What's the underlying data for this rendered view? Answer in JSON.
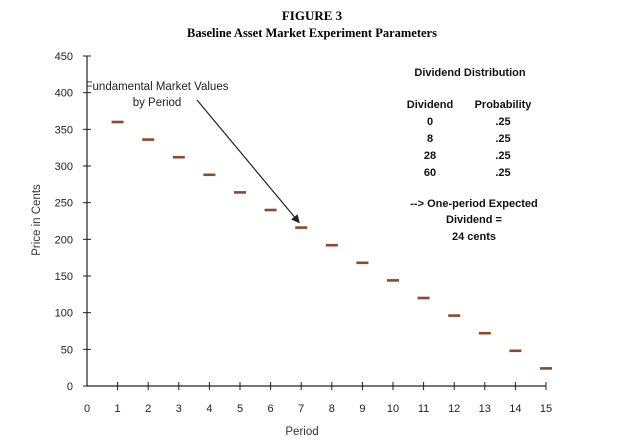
{
  "figure_number": "FIGURE 3",
  "figure_title": "Baseline Asset Market Experiment Parameters",
  "annotation": {
    "line1": "Fundamental Market Values",
    "line2": "by Period",
    "arrow_target_x": 7,
    "arrow_target_y": 216
  },
  "dividend_table": {
    "title": "Dividend Distribution",
    "col1_header": "Dividend",
    "col2_header": "Probability",
    "rows": [
      {
        "dividend": "0",
        "probability": ".25"
      },
      {
        "dividend": "8",
        "probability": ".25"
      },
      {
        "dividend": "28",
        "probability": ".25"
      },
      {
        "dividend": "60",
        "probability": ".25"
      }
    ],
    "expected_line1": "--> One-period Expected",
    "expected_line2": "Dividend =",
    "expected_line3": "24 cents"
  },
  "colors": {
    "marker": "#8b4a2b",
    "axis": "#222222"
  },
  "chart_data": {
    "type": "scatter",
    "title": "Baseline Asset Market Experiment Parameters",
    "xlabel": "Period",
    "ylabel": "Price in Cents",
    "xlim": [
      0,
      15
    ],
    "ylim": [
      0,
      450
    ],
    "x_ticks": [
      0,
      1,
      2,
      3,
      4,
      5,
      6,
      7,
      8,
      9,
      10,
      11,
      12,
      13,
      14,
      15
    ],
    "y_ticks": [
      0,
      50,
      100,
      150,
      200,
      250,
      300,
      350,
      400,
      450
    ],
    "grid": false,
    "series": [
      {
        "x": [
          1,
          2,
          3,
          4,
          5,
          6,
          7,
          8,
          9,
          10,
          11,
          12,
          13,
          14,
          15
        ],
        "y": [
          360,
          336,
          312,
          288,
          264,
          240,
          216,
          192,
          168,
          144,
          120,
          96,
          72,
          48,
          24
        ]
      }
    ]
  }
}
